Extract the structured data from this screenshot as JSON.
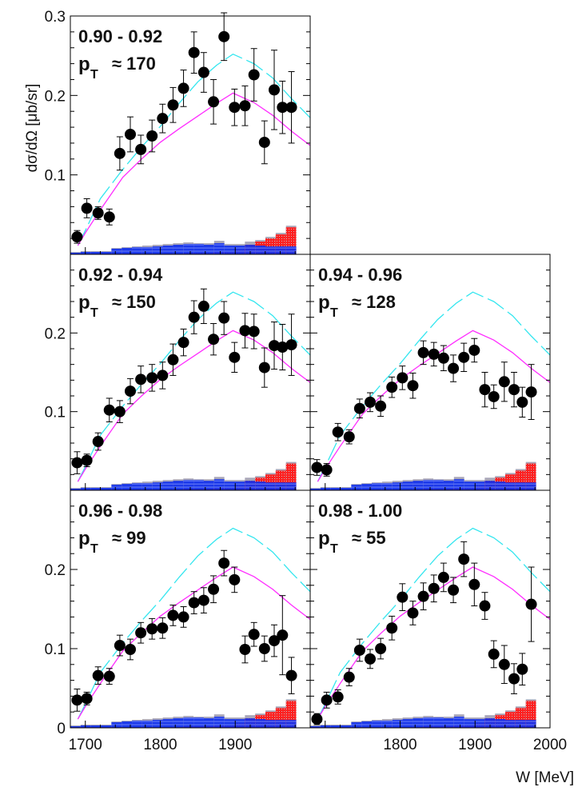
{
  "chart_data": {
    "type": "scatter",
    "xlabel": "W [MeV]",
    "ylabel": "dσ/dΩ [μb/sr]",
    "xlim": [
      1680,
      2000
    ],
    "ylim": [
      0,
      0.3
    ],
    "x_ticks": [
      "1700",
      "1800",
      "1900",
      "2000"
    ],
    "y_ticks": [
      "0",
      "0.1",
      "0.2",
      "0.3"
    ],
    "W": [
      1689,
      1702,
      1717,
      1732,
      1746,
      1760,
      1774,
      1789,
      1803,
      1817,
      1831,
      1845,
      1858,
      1871,
      1885,
      1899,
      1913,
      1925,
      1939,
      1952,
      1963,
      1975
    ],
    "curves": [
      {
        "name": "model-cyan-dashed",
        "color": "#33e6ef",
        "style": "dashed",
        "x": [
          1690,
          1700,
          1720,
          1750,
          1775,
          1800,
          1825,
          1850,
          1875,
          1897,
          1925,
          1950,
          1975,
          2000
        ],
        "y": [
          0.011,
          0.03,
          0.07,
          0.107,
          0.135,
          0.161,
          0.19,
          0.217,
          0.238,
          0.252,
          0.24,
          0.222,
          0.196,
          0.172
        ]
      },
      {
        "name": "model-magenta-solid",
        "color": "#ff2cff",
        "style": "solid",
        "x": [
          1690,
          1700,
          1720,
          1750,
          1775,
          1800,
          1825,
          1850,
          1875,
          1897,
          1925,
          1950,
          1975,
          2000
        ],
        "y": [
          0.011,
          0.027,
          0.056,
          0.097,
          0.12,
          0.141,
          0.158,
          0.174,
          0.19,
          0.203,
          0.191,
          0.175,
          0.155,
          0.137
        ]
      }
    ],
    "systematics": {
      "bin_edges_start": 1680,
      "bin_width": 13.7,
      "colors": {
        "total": "#a9a6b8",
        "red": "#ff2020",
        "blue": "#1030ee"
      },
      "total": [
        0.003,
        0.004,
        0.004,
        0.004,
        0.008,
        0.009,
        0.01,
        0.011,
        0.012,
        0.013,
        0.014,
        0.015,
        0.014,
        0.014,
        0.017,
        0.013,
        0.013,
        0.016,
        0.018,
        0.022,
        0.027,
        0.036
      ],
      "red": [
        0.001,
        0.001,
        0.001,
        0.001,
        0.001,
        0.001,
        0.001,
        0.001,
        0.001,
        0.001,
        0.001,
        0.002,
        0.002,
        0.002,
        0.003,
        0.003,
        0.006,
        0.012,
        0.016,
        0.02,
        0.025,
        0.034
      ],
      "blue": [
        0.002,
        0.003,
        0.003,
        0.003,
        0.007,
        0.008,
        0.009,
        0.009,
        0.01,
        0.011,
        0.012,
        0.013,
        0.013,
        0.012,
        0.014,
        0.011,
        0.011,
        0.012,
        0.011,
        0.01,
        0.01,
        0.01
      ]
    },
    "panels": [
      {
        "range": "0.90 - 0.92",
        "pt_symbol": "p",
        "pt_subscript": "T",
        "pt_value": "≈ 170",
        "y_tick_labels": [
          "0.1",
          "0.2",
          "0.3"
        ],
        "x_tick_labels": [],
        "values": [
          0.022,
          0.058,
          0.052,
          0.047,
          0.127,
          0.151,
          0.132,
          0.149,
          0.171,
          0.188,
          0.209,
          0.254,
          0.229,
          0.192,
          0.274,
          0.185,
          0.187,
          0.226,
          0.141,
          0.207,
          0.185,
          0.185
        ],
        "errors": [
          0.008,
          0.012,
          0.008,
          0.01,
          0.021,
          0.022,
          0.018,
          0.02,
          0.018,
          0.022,
          0.023,
          0.026,
          0.025,
          0.028,
          0.03,
          0.023,
          0.025,
          0.033,
          0.027,
          0.05,
          0.033,
          0.045
        ]
      },
      {
        "range": "0.92 - 0.94",
        "pt_symbol": "p",
        "pt_subscript": "T",
        "pt_value": "≈ 150",
        "y_tick_labels": [
          "0.1",
          "0.2"
        ],
        "x_tick_labels": [],
        "values": [
          0.035,
          0.038,
          0.062,
          0.102,
          0.1,
          0.126,
          0.141,
          0.143,
          0.146,
          0.166,
          0.188,
          0.22,
          0.234,
          0.192,
          0.219,
          0.169,
          0.203,
          0.202,
          0.156,
          0.184,
          0.182,
          0.185
        ],
        "errors": [
          0.014,
          0.008,
          0.011,
          0.015,
          0.014,
          0.016,
          0.017,
          0.017,
          0.017,
          0.02,
          0.017,
          0.021,
          0.022,
          0.02,
          0.021,
          0.019,
          0.022,
          0.022,
          0.025,
          0.03,
          0.029,
          0.039
        ]
      },
      {
        "range": "0.94 - 0.96",
        "pt_symbol": "p",
        "pt_subscript": "T",
        "pt_value": "≈ 128",
        "y_tick_labels": [],
        "x_tick_labels": [],
        "values": [
          0.029,
          0.026,
          0.074,
          0.068,
          0.104,
          0.112,
          0.107,
          0.131,
          0.143,
          0.133,
          0.175,
          0.173,
          0.168,
          0.155,
          0.169,
          0.178,
          0.128,
          0.119,
          0.138,
          0.128,
          0.112,
          0.125
        ],
        "errors": [
          0.01,
          0.008,
          0.011,
          0.009,
          0.012,
          0.012,
          0.013,
          0.013,
          0.015,
          0.016,
          0.015,
          0.015,
          0.016,
          0.017,
          0.018,
          0.015,
          0.022,
          0.015,
          0.025,
          0.022,
          0.019,
          0.035
        ]
      },
      {
        "range": "0.96 - 0.98",
        "pt_symbol": "p",
        "pt_subscript": "T",
        "pt_value": "≈ 99",
        "y_tick_labels": [
          "0",
          "0.1",
          "0.2"
        ],
        "x_tick_labels": [
          "1700",
          "1800",
          "1900"
        ],
        "values": [
          0.035,
          0.037,
          0.066,
          0.065,
          0.104,
          0.099,
          0.12,
          0.125,
          0.126,
          0.142,
          0.14,
          0.158,
          0.161,
          0.175,
          0.208,
          0.187,
          0.099,
          0.118,
          0.1,
          0.11,
          0.117,
          0.066
        ],
        "errors": [
          0.014,
          0.008,
          0.011,
          0.01,
          0.013,
          0.013,
          0.013,
          0.013,
          0.013,
          0.013,
          0.013,
          0.014,
          0.016,
          0.017,
          0.016,
          0.016,
          0.017,
          0.015,
          0.016,
          0.02,
          0.05,
          0.023
        ]
      },
      {
        "range": "0.98 - 1.00",
        "pt_symbol": "p",
        "pt_subscript": "T",
        "pt_value": "≈ 55",
        "y_tick_labels": [],
        "x_tick_labels": [
          "1800",
          "1900",
          "2000"
        ],
        "values": [
          0.011,
          0.035,
          0.039,
          0.064,
          0.098,
          0.087,
          0.1,
          0.126,
          0.165,
          0.145,
          0.166,
          0.176,
          0.19,
          0.174,
          0.213,
          0.181,
          0.154,
          0.093,
          0.08,
          0.062,
          0.074,
          0.156
        ],
        "errors": [
          0.007,
          0.01,
          0.009,
          0.011,
          0.014,
          0.012,
          0.013,
          0.015,
          0.017,
          0.015,
          0.017,
          0.017,
          0.018,
          0.016,
          0.022,
          0.027,
          0.017,
          0.017,
          0.024,
          0.019,
          0.02,
          0.047
        ]
      }
    ]
  }
}
